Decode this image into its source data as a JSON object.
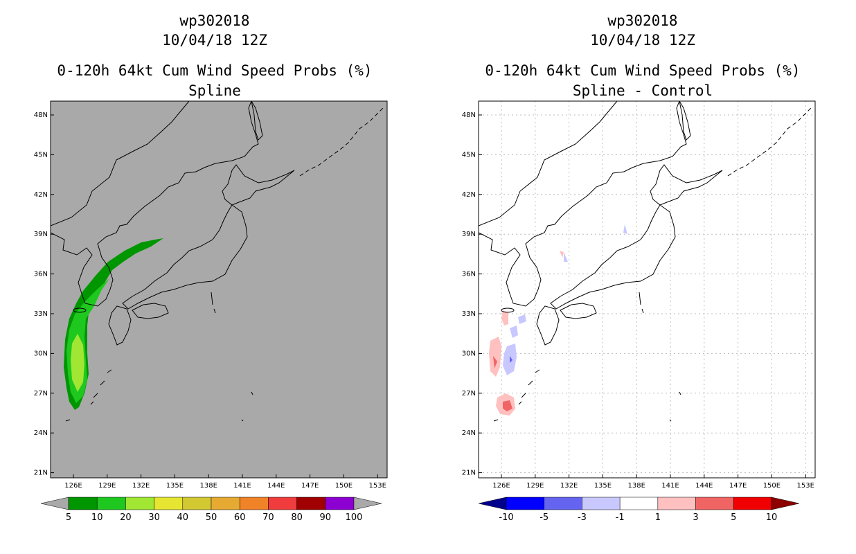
{
  "left_panel": {
    "storm_id": "wp302018",
    "datetime": "10/04/18 12Z",
    "product": "0-120h 64kt Cum Wind Speed Probs (%)",
    "subtitle": "Spline",
    "background_color": "#a9a9a9"
  },
  "right_panel": {
    "storm_id": "wp302018",
    "datetime": "10/04/18 12Z",
    "product": "0-120h 64kt Cum Wind Speed Probs (%)",
    "subtitle": "Spline - Control",
    "background_color": "#ffffff"
  },
  "map_extent": {
    "lon_ticks": [
      "126E",
      "129E",
      "132E",
      "135E",
      "138E",
      "141E",
      "144E",
      "147E",
      "150E",
      "153E"
    ],
    "lat_ticks": [
      "48N",
      "45N",
      "42N",
      "39N",
      "36N",
      "33N",
      "30N",
      "27N",
      "24N",
      "21N"
    ]
  },
  "colorbar_left": {
    "labels": [
      "5",
      "10",
      "20",
      "30",
      "40",
      "50",
      "60",
      "70",
      "80",
      "90",
      "100"
    ],
    "colors": [
      "#009600",
      "#1ec81e",
      "#a0e632",
      "#e6e632",
      "#d2c832",
      "#e6aa32",
      "#f08228",
      "#f03c3c",
      "#a00000",
      "#8c00d2"
    ],
    "end_low_color": "#a9a9a9",
    "end_high_color": "#a9a9a9"
  },
  "colorbar_right": {
    "labels": [
      "-10",
      "-5",
      "-3",
      "-1",
      "1",
      "3",
      "5",
      "10"
    ],
    "colors": [
      "#0000ff",
      "#6464f0",
      "#c8c8ff",
      "#ffffff",
      "#ffc0c0",
      "#f06464",
      "#f00000"
    ],
    "end_low_color": "#00008c",
    "end_high_color": "#8c0000"
  }
}
